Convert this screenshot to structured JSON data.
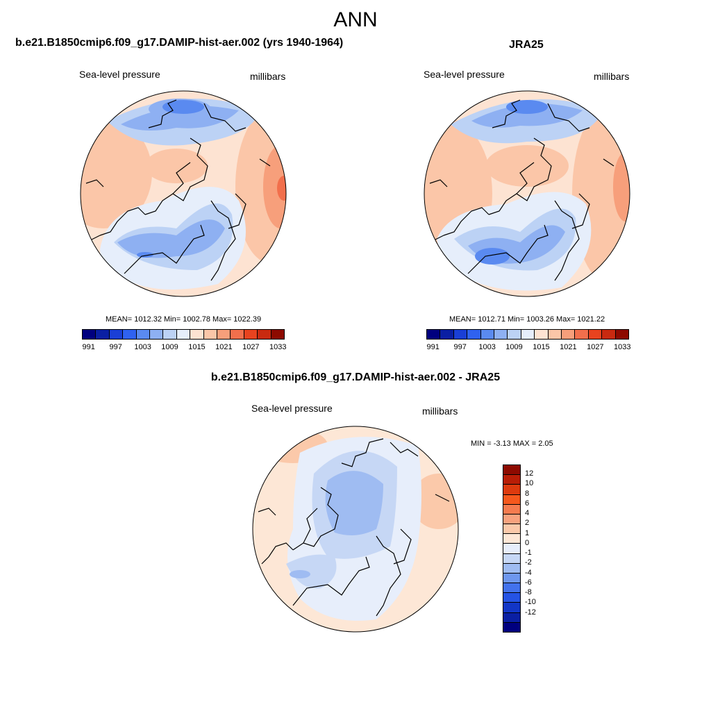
{
  "main_title": "ANN",
  "panels": [
    {
      "title": "b.e21.B1850cmip6.f09_g17.DAMIP-hist-aer.002 (yrs 1940-1964)",
      "variable": "Sea-level pressure",
      "units": "millibars",
      "stats": {
        "mean": "1012.32",
        "min": "1002.78",
        "max": "1022.39"
      },
      "stats_text": "MEAN= 1012.32  Min= 1002.78  Max= 1022.39"
    },
    {
      "title": "JRA25",
      "variable": "Sea-level pressure",
      "units": "millibars",
      "stats": {
        "mean": "1012.71",
        "min": "1003.26",
        "max": "1021.22"
      },
      "stats_text": "MEAN= 1012.71  Min= 1003.26  Max= 1021.22"
    }
  ],
  "difference": {
    "title": "b.e21.B1850cmip6.f09_g17.DAMIP-hist-aer.002 - JRA25",
    "variable": "Sea-level pressure",
    "units": "millibars",
    "stats": {
      "min": "-3.13",
      "max": "2.05"
    },
    "stats_text": "MIN =  -3.13 MAX =   2.05"
  },
  "colorbar_abs": {
    "colors": [
      "#00007f",
      "#0a1fa3",
      "#1a3fd6",
      "#2f62f0",
      "#5a8af0",
      "#8eb0f2",
      "#bcd2f5",
      "#e6eefb",
      "#fde3d2",
      "#fbc6a8",
      "#f79f7b",
      "#f26f4c",
      "#e8431f",
      "#c92a10",
      "#8d0a00"
    ],
    "tick_labels": [
      "991",
      "997",
      "1003",
      "1009",
      "1015",
      "1021",
      "1027",
      "1033"
    ]
  },
  "colorbar_diff": {
    "colors": [
      "#8d0a00",
      "#b81d06",
      "#dd3a0e",
      "#f5581d",
      "#f57b4f",
      "#f8a27e",
      "#fbc9aa",
      "#fde7d6",
      "#e7eefb",
      "#c6d7f5",
      "#9fbcf2",
      "#6e97ef",
      "#4372ec",
      "#2553e4",
      "#1236c7",
      "#0a1fa3",
      "#00007f"
    ],
    "tick_labels": [
      "12",
      "10",
      "8",
      "6",
      "4",
      "2",
      "1",
      "0",
      "-1",
      "-2",
      "-4",
      "-6",
      "-8",
      "-10",
      "-12"
    ]
  }
}
